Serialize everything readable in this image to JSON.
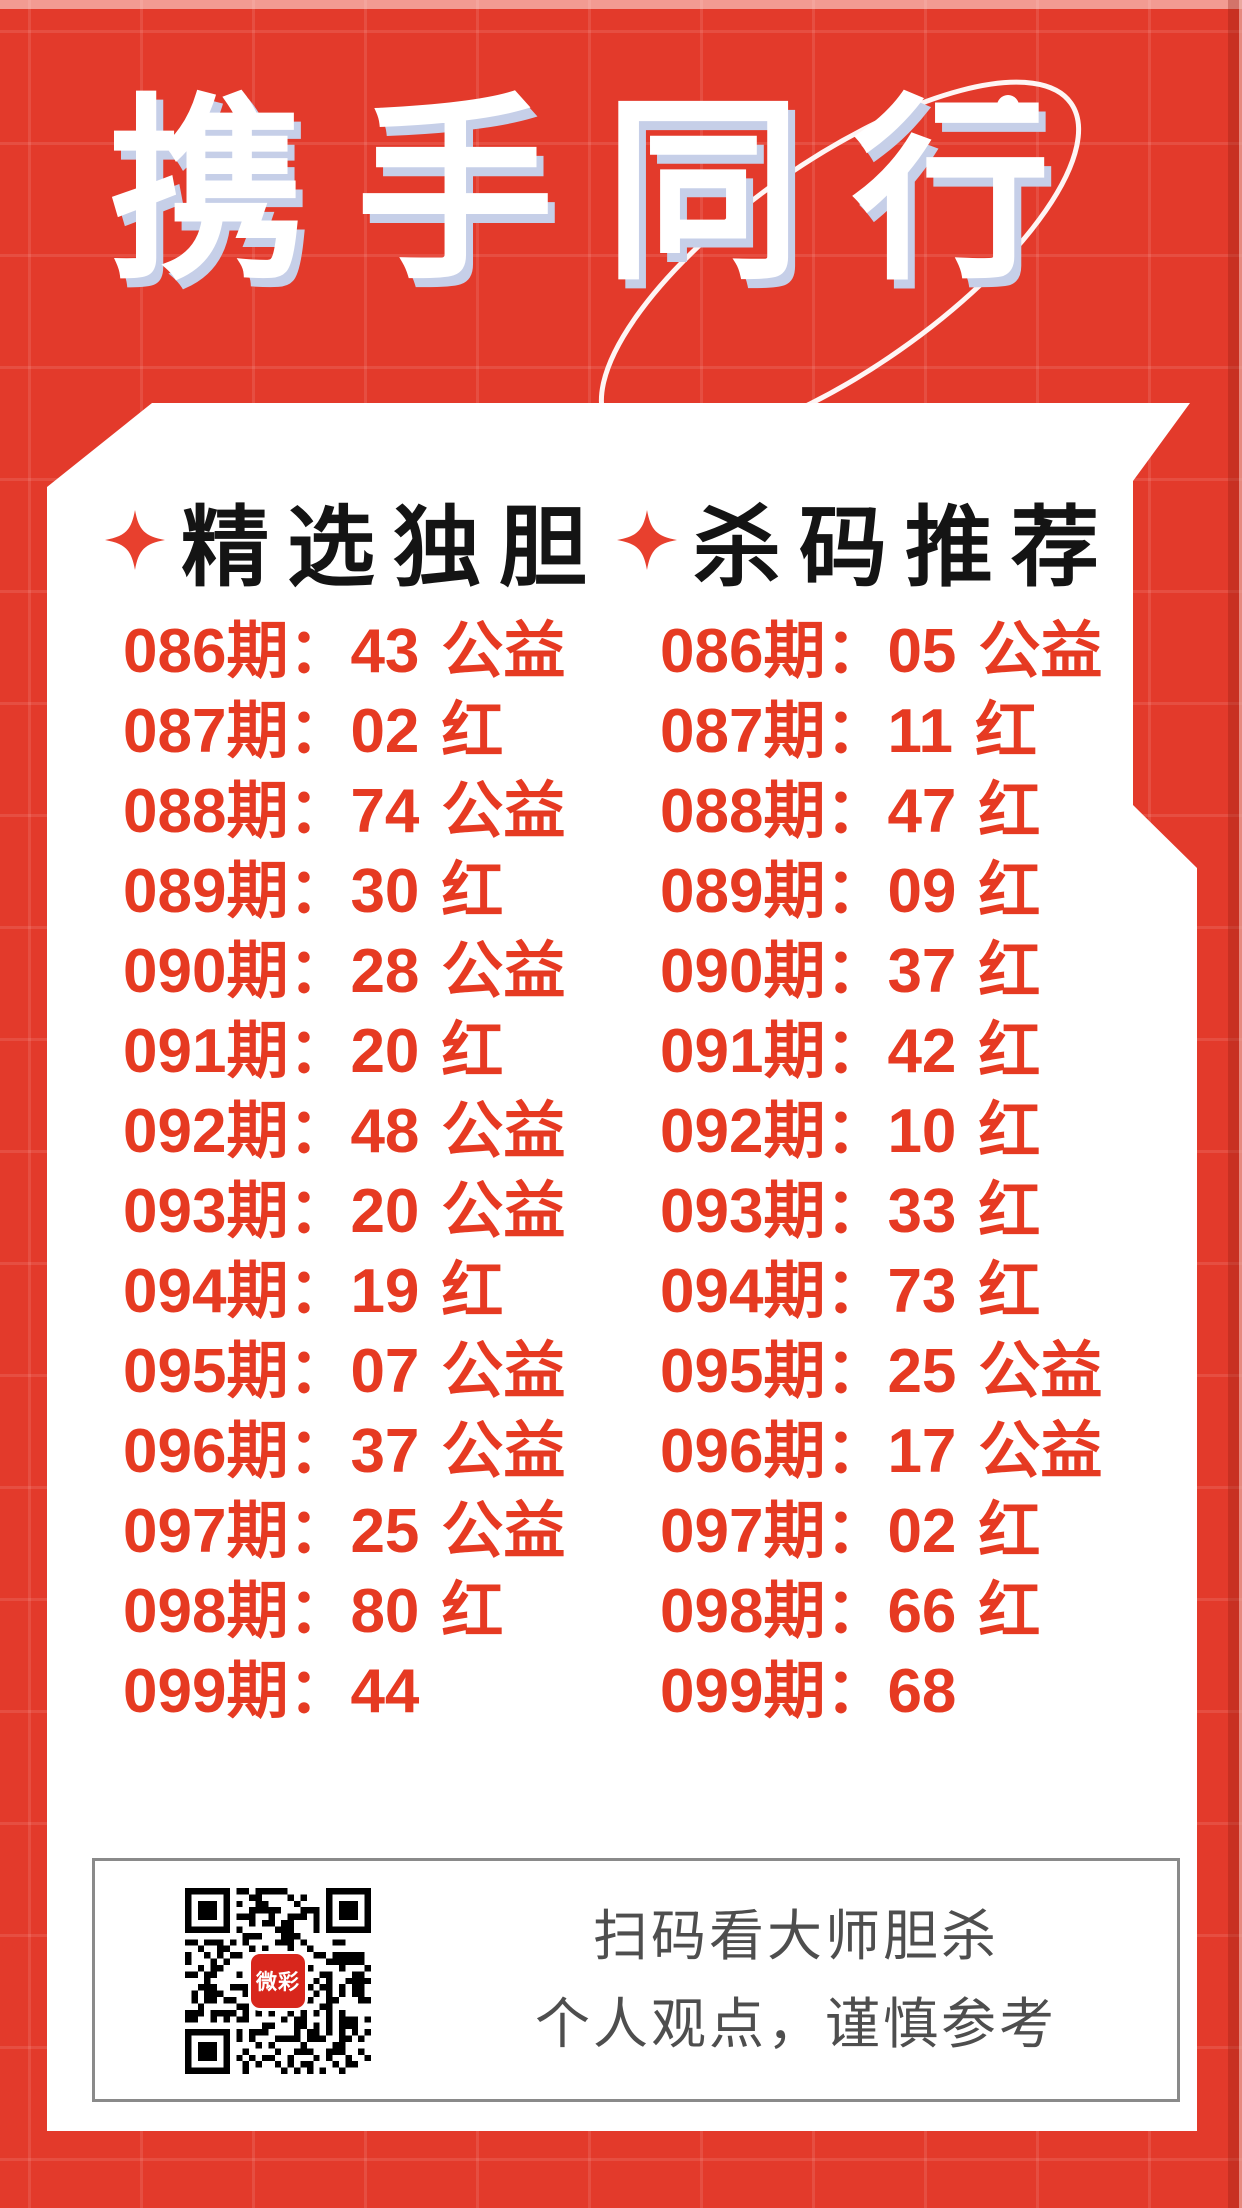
{
  "title": "携手同行",
  "card": {
    "left": {
      "header": "精选独胆",
      "rows": [
        {
          "period": "086期：",
          "value": "43",
          "tag": "公益"
        },
        {
          "period": "087期：",
          "value": "02",
          "tag": "红"
        },
        {
          "period": "088期：",
          "value": "74",
          "tag": "公益"
        },
        {
          "period": "089期：",
          "value": "30",
          "tag": "红"
        },
        {
          "period": "090期：",
          "value": "28",
          "tag": "公益"
        },
        {
          "period": "091期：",
          "value": "20",
          "tag": "红"
        },
        {
          "period": "092期：",
          "value": "48",
          "tag": "公益"
        },
        {
          "period": "093期：",
          "value": "20",
          "tag": "公益"
        },
        {
          "period": "094期：",
          "value": "19",
          "tag": "红"
        },
        {
          "period": "095期：",
          "value": "07",
          "tag": "公益"
        },
        {
          "period": "096期：",
          "value": "37",
          "tag": "公益"
        },
        {
          "period": "097期：",
          "value": "25",
          "tag": "公益"
        },
        {
          "period": "098期：",
          "value": "80",
          "tag": "红"
        },
        {
          "period": "099期：",
          "value": "44",
          "tag": ""
        }
      ]
    },
    "right": {
      "header": "杀码推荐",
      "rows": [
        {
          "period": "086期：",
          "value": "05",
          "tag": "公益"
        },
        {
          "period": "087期：",
          "value": "11",
          "tag": "红"
        },
        {
          "period": "088期：",
          "value": "47",
          "tag": "红"
        },
        {
          "period": "089期：",
          "value": "09",
          "tag": "红"
        },
        {
          "period": "090期：",
          "value": "37",
          "tag": "红"
        },
        {
          "period": "091期：",
          "value": "42",
          "tag": "红"
        },
        {
          "period": "092期：",
          "value": "10",
          "tag": "红"
        },
        {
          "period": "093期：",
          "value": "33",
          "tag": "红"
        },
        {
          "period": "094期：",
          "value": "73",
          "tag": "红"
        },
        {
          "period": "095期：",
          "value": "25",
          "tag": "公益"
        },
        {
          "period": "096期：",
          "value": "17",
          "tag": "公益"
        },
        {
          "period": "097期：",
          "value": "02",
          "tag": "红"
        },
        {
          "period": "098期：",
          "value": "66",
          "tag": "红"
        },
        {
          "period": "099期：",
          "value": "68",
          "tag": ""
        }
      ]
    }
  },
  "footer": {
    "line1": "扫码看大师胆杀",
    "line2": "个人观点，谨慎参考",
    "qr_logo": "微彩"
  },
  "colors": {
    "background": "#e33a2b",
    "row_text": "#e63a22",
    "header_text": "#141414",
    "star": "#e8402e",
    "title_shadow": "#c6cfe8",
    "footer_text": "#4e4e4e"
  }
}
